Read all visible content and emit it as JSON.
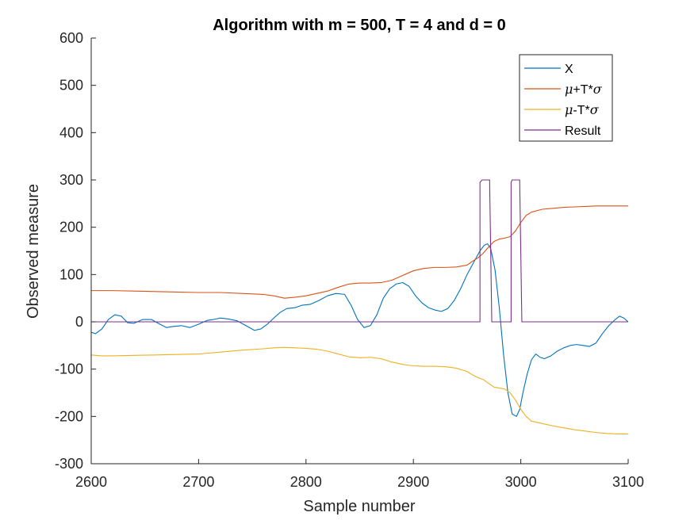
{
  "chart_data": {
    "type": "line",
    "title": "Algorithm with m = 500, T = 4 and d = 0",
    "xlabel": "Sample number",
    "ylabel": "Observed measure",
    "xlim": [
      2600,
      3100
    ],
    "ylim": [
      -300,
      600
    ],
    "xticks": [
      2600,
      2700,
      2800,
      2900,
      3000,
      3100
    ],
    "yticks": [
      -300,
      -200,
      -100,
      0,
      100,
      200,
      300,
      400,
      500,
      600
    ],
    "xtick_labels": [
      "2600",
      "2700",
      "2800",
      "2900",
      "3000",
      "3100"
    ],
    "ytick_labels": [
      "-300",
      "-200",
      "-100",
      "0",
      "100",
      "200",
      "300",
      "400",
      "500",
      "600"
    ],
    "grid": false,
    "legend_position": "top-right",
    "series": [
      {
        "name": "X",
        "color": "#0072BD",
        "x": [
          2600,
          2604,
          2610,
          2616,
          2622,
          2628,
          2634,
          2640,
          2648,
          2656,
          2664,
          2670,
          2676,
          2684,
          2692,
          2700,
          2708,
          2714,
          2720,
          2728,
          2736,
          2744,
          2752,
          2758,
          2764,
          2770,
          2776,
          2782,
          2790,
          2796,
          2804,
          2812,
          2820,
          2828,
          2836,
          2842,
          2848,
          2854,
          2860,
          2866,
          2872,
          2878,
          2884,
          2890,
          2896,
          2902,
          2908,
          2914,
          2920,
          2926,
          2932,
          2938,
          2944,
          2950,
          2956,
          2962,
          2966,
          2969,
          2972,
          2976,
          2980,
          2984,
          2988,
          2992,
          2996,
          2999,
          3002,
          3006,
          3010,
          3014,
          3018,
          3022,
          3028,
          3034,
          3040,
          3046,
          3052,
          3058,
          3064,
          3070,
          3076,
          3082,
          3088,
          3092,
          3096,
          3100
        ],
        "values": [
          -22,
          -25,
          -15,
          5,
          15,
          12,
          -2,
          -3,
          5,
          5,
          -5,
          -12,
          -10,
          -8,
          -12,
          -5,
          3,
          5,
          8,
          6,
          2,
          -8,
          -18,
          -15,
          -5,
          8,
          20,
          28,
          30,
          35,
          37,
          45,
          55,
          60,
          58,
          35,
          5,
          -12,
          -8,
          15,
          50,
          70,
          80,
          83,
          75,
          55,
          40,
          30,
          25,
          22,
          28,
          45,
          70,
          100,
          125,
          150,
          162,
          165,
          155,
          110,
          30,
          -70,
          -150,
          -195,
          -200,
          -185,
          -150,
          -110,
          -80,
          -68,
          -75,
          -78,
          -72,
          -62,
          -55,
          -50,
          -48,
          -50,
          -52,
          -45,
          -25,
          -8,
          5,
          12,
          8,
          0
        ]
      },
      {
        "name": "μ+T*σ",
        "color": "#D95319",
        "x": [
          2600,
          2620,
          2640,
          2660,
          2680,
          2700,
          2720,
          2740,
          2760,
          2770,
          2780,
          2790,
          2800,
          2810,
          2820,
          2830,
          2840,
          2850,
          2860,
          2870,
          2880,
          2890,
          2900,
          2910,
          2920,
          2930,
          2940,
          2950,
          2955,
          2960,
          2965,
          2970,
          2975,
          2980,
          2985,
          2990,
          2995,
          3000,
          3005,
          3010,
          3020,
          3030,
          3040,
          3050,
          3060,
          3070,
          3080,
          3090,
          3100
        ],
        "values": [
          66,
          66,
          65,
          64,
          63,
          62,
          62,
          60,
          58,
          55,
          50,
          52,
          55,
          60,
          65,
          73,
          80,
          82,
          82,
          83,
          88,
          98,
          108,
          113,
          115,
          115,
          116,
          120,
          128,
          135,
          145,
          158,
          170,
          175,
          177,
          180,
          192,
          210,
          225,
          232,
          238,
          240,
          242,
          243,
          244,
          245,
          245,
          245,
          245
        ]
      },
      {
        "name": "μ-T*σ",
        "color": "#EDB120",
        "x": [
          2600,
          2610,
          2620,
          2640,
          2660,
          2680,
          2700,
          2720,
          2740,
          2760,
          2770,
          2780,
          2790,
          2800,
          2810,
          2820,
          2830,
          2840,
          2850,
          2860,
          2870,
          2880,
          2890,
          2900,
          2910,
          2920,
          2930,
          2940,
          2950,
          2955,
          2960,
          2965,
          2970,
          2975,
          2980,
          2985,
          2990,
          2995,
          3000,
          3005,
          3010,
          3020,
          3030,
          3040,
          3050,
          3060,
          3070,
          3080,
          3090,
          3100
        ],
        "values": [
          -70,
          -72,
          -72,
          -71,
          -70,
          -69,
          -68,
          -64,
          -60,
          -57,
          -55,
          -54,
          -55,
          -56,
          -58,
          -62,
          -68,
          -74,
          -76,
          -75,
          -78,
          -85,
          -90,
          -93,
          -94,
          -94,
          -95,
          -98,
          -105,
          -112,
          -118,
          -122,
          -130,
          -138,
          -140,
          -142,
          -150,
          -165,
          -185,
          -200,
          -210,
          -215,
          -220,
          -224,
          -228,
          -231,
          -234,
          -236,
          -237,
          -237
        ]
      },
      {
        "name": "Result",
        "color": "#7E2F8E",
        "x": [
          2600,
          2962,
          2962,
          2964,
          2964,
          2971,
          2971,
          2973,
          2973,
          2991,
          2991,
          2992,
          2992,
          2999,
          2999,
          3001,
          3001,
          3100
        ],
        "values": [
          0,
          0,
          295,
          300,
          300,
          300,
          295,
          0,
          0,
          0,
          295,
          300,
          300,
          300,
          295,
          0,
          0,
          0
        ]
      }
    ]
  }
}
